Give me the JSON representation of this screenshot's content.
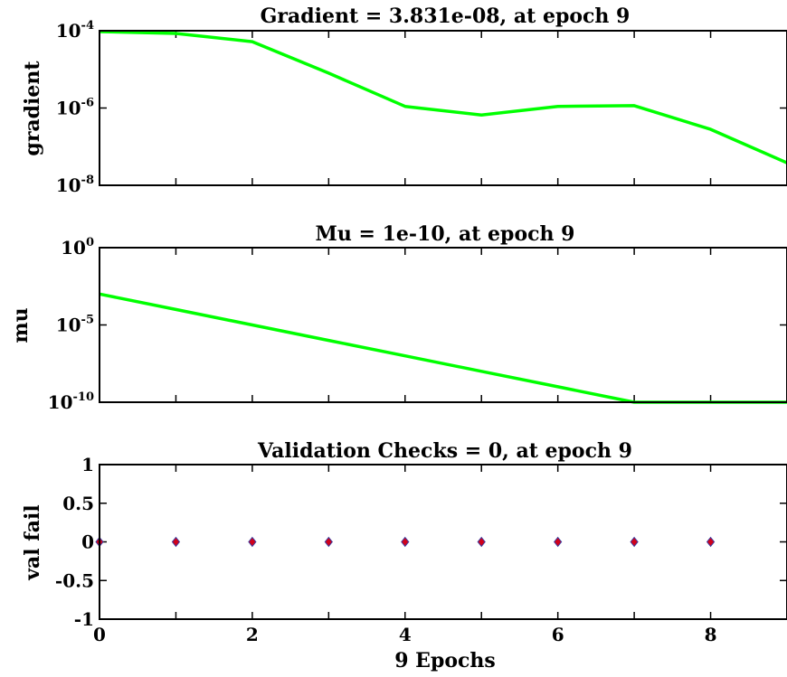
{
  "chart_data": [
    {
      "type": "line",
      "title": "Gradient = 3.831e-08, at epoch 9",
      "ylabel": "gradient",
      "xlabel": "",
      "yscale": "log",
      "xlim": [
        0,
        9
      ],
      "ylim": [
        1e-08,
        0.0001
      ],
      "yticks": [
        {
          "base": "10",
          "exp": "-4"
        },
        {
          "base": "10",
          "exp": "-6"
        },
        {
          "base": "10",
          "exp": "-8"
        }
      ],
      "xticks": [],
      "x": [
        0,
        1,
        2,
        3,
        4,
        5,
        6,
        7,
        8,
        9
      ],
      "series": [
        {
          "color": "#00ff00",
          "values": [
            9.5e-05,
            8.5e-05,
            5.2e-05,
            8e-06,
            1.1e-06,
            6.6e-07,
            1.1e-06,
            1.15e-06,
            2.8e-07,
            3.831e-08
          ]
        }
      ]
    },
    {
      "type": "line",
      "title": "Mu = 1e-10, at epoch 9",
      "ylabel": "mu",
      "xlabel": "",
      "yscale": "log",
      "xlim": [
        0,
        9
      ],
      "ylim": [
        1e-10,
        1
      ],
      "yticks": [
        {
          "base": "10",
          "exp": "0"
        },
        {
          "base": "10",
          "exp": "-5"
        },
        {
          "base": "10",
          "exp": "-10"
        }
      ],
      "xticks": [],
      "x": [
        0,
        1,
        2,
        3,
        4,
        5,
        6,
        7,
        8,
        9
      ],
      "series": [
        {
          "color": "#00ff00",
          "values": [
            0.001,
            0.0001,
            1e-05,
            1e-06,
            1e-07,
            1e-08,
            1e-09,
            1e-10,
            1e-10,
            1e-10
          ]
        }
      ]
    },
    {
      "type": "scatter",
      "title": "Validation Checks = 0, at epoch 9",
      "ylabel": "val fail",
      "xlabel": "9 Epochs",
      "yscale": "linear",
      "xlim": [
        0,
        9
      ],
      "ylim": [
        -1,
        1
      ],
      "yticks": [
        {
          "base": "1"
        },
        {
          "base": "0.5"
        },
        {
          "base": "0"
        },
        {
          "base": "-0.5"
        },
        {
          "base": "-1"
        }
      ],
      "xticks": [
        "0",
        "2",
        "4",
        "6",
        "8"
      ],
      "x": [
        0,
        1,
        2,
        3,
        4,
        5,
        6,
        7,
        8
      ],
      "series": [
        {
          "color": "#d0021b",
          "edge": "#3a3aa0",
          "values": [
            0,
            0,
            0,
            0,
            0,
            0,
            0,
            0,
            0
          ]
        }
      ]
    }
  ]
}
